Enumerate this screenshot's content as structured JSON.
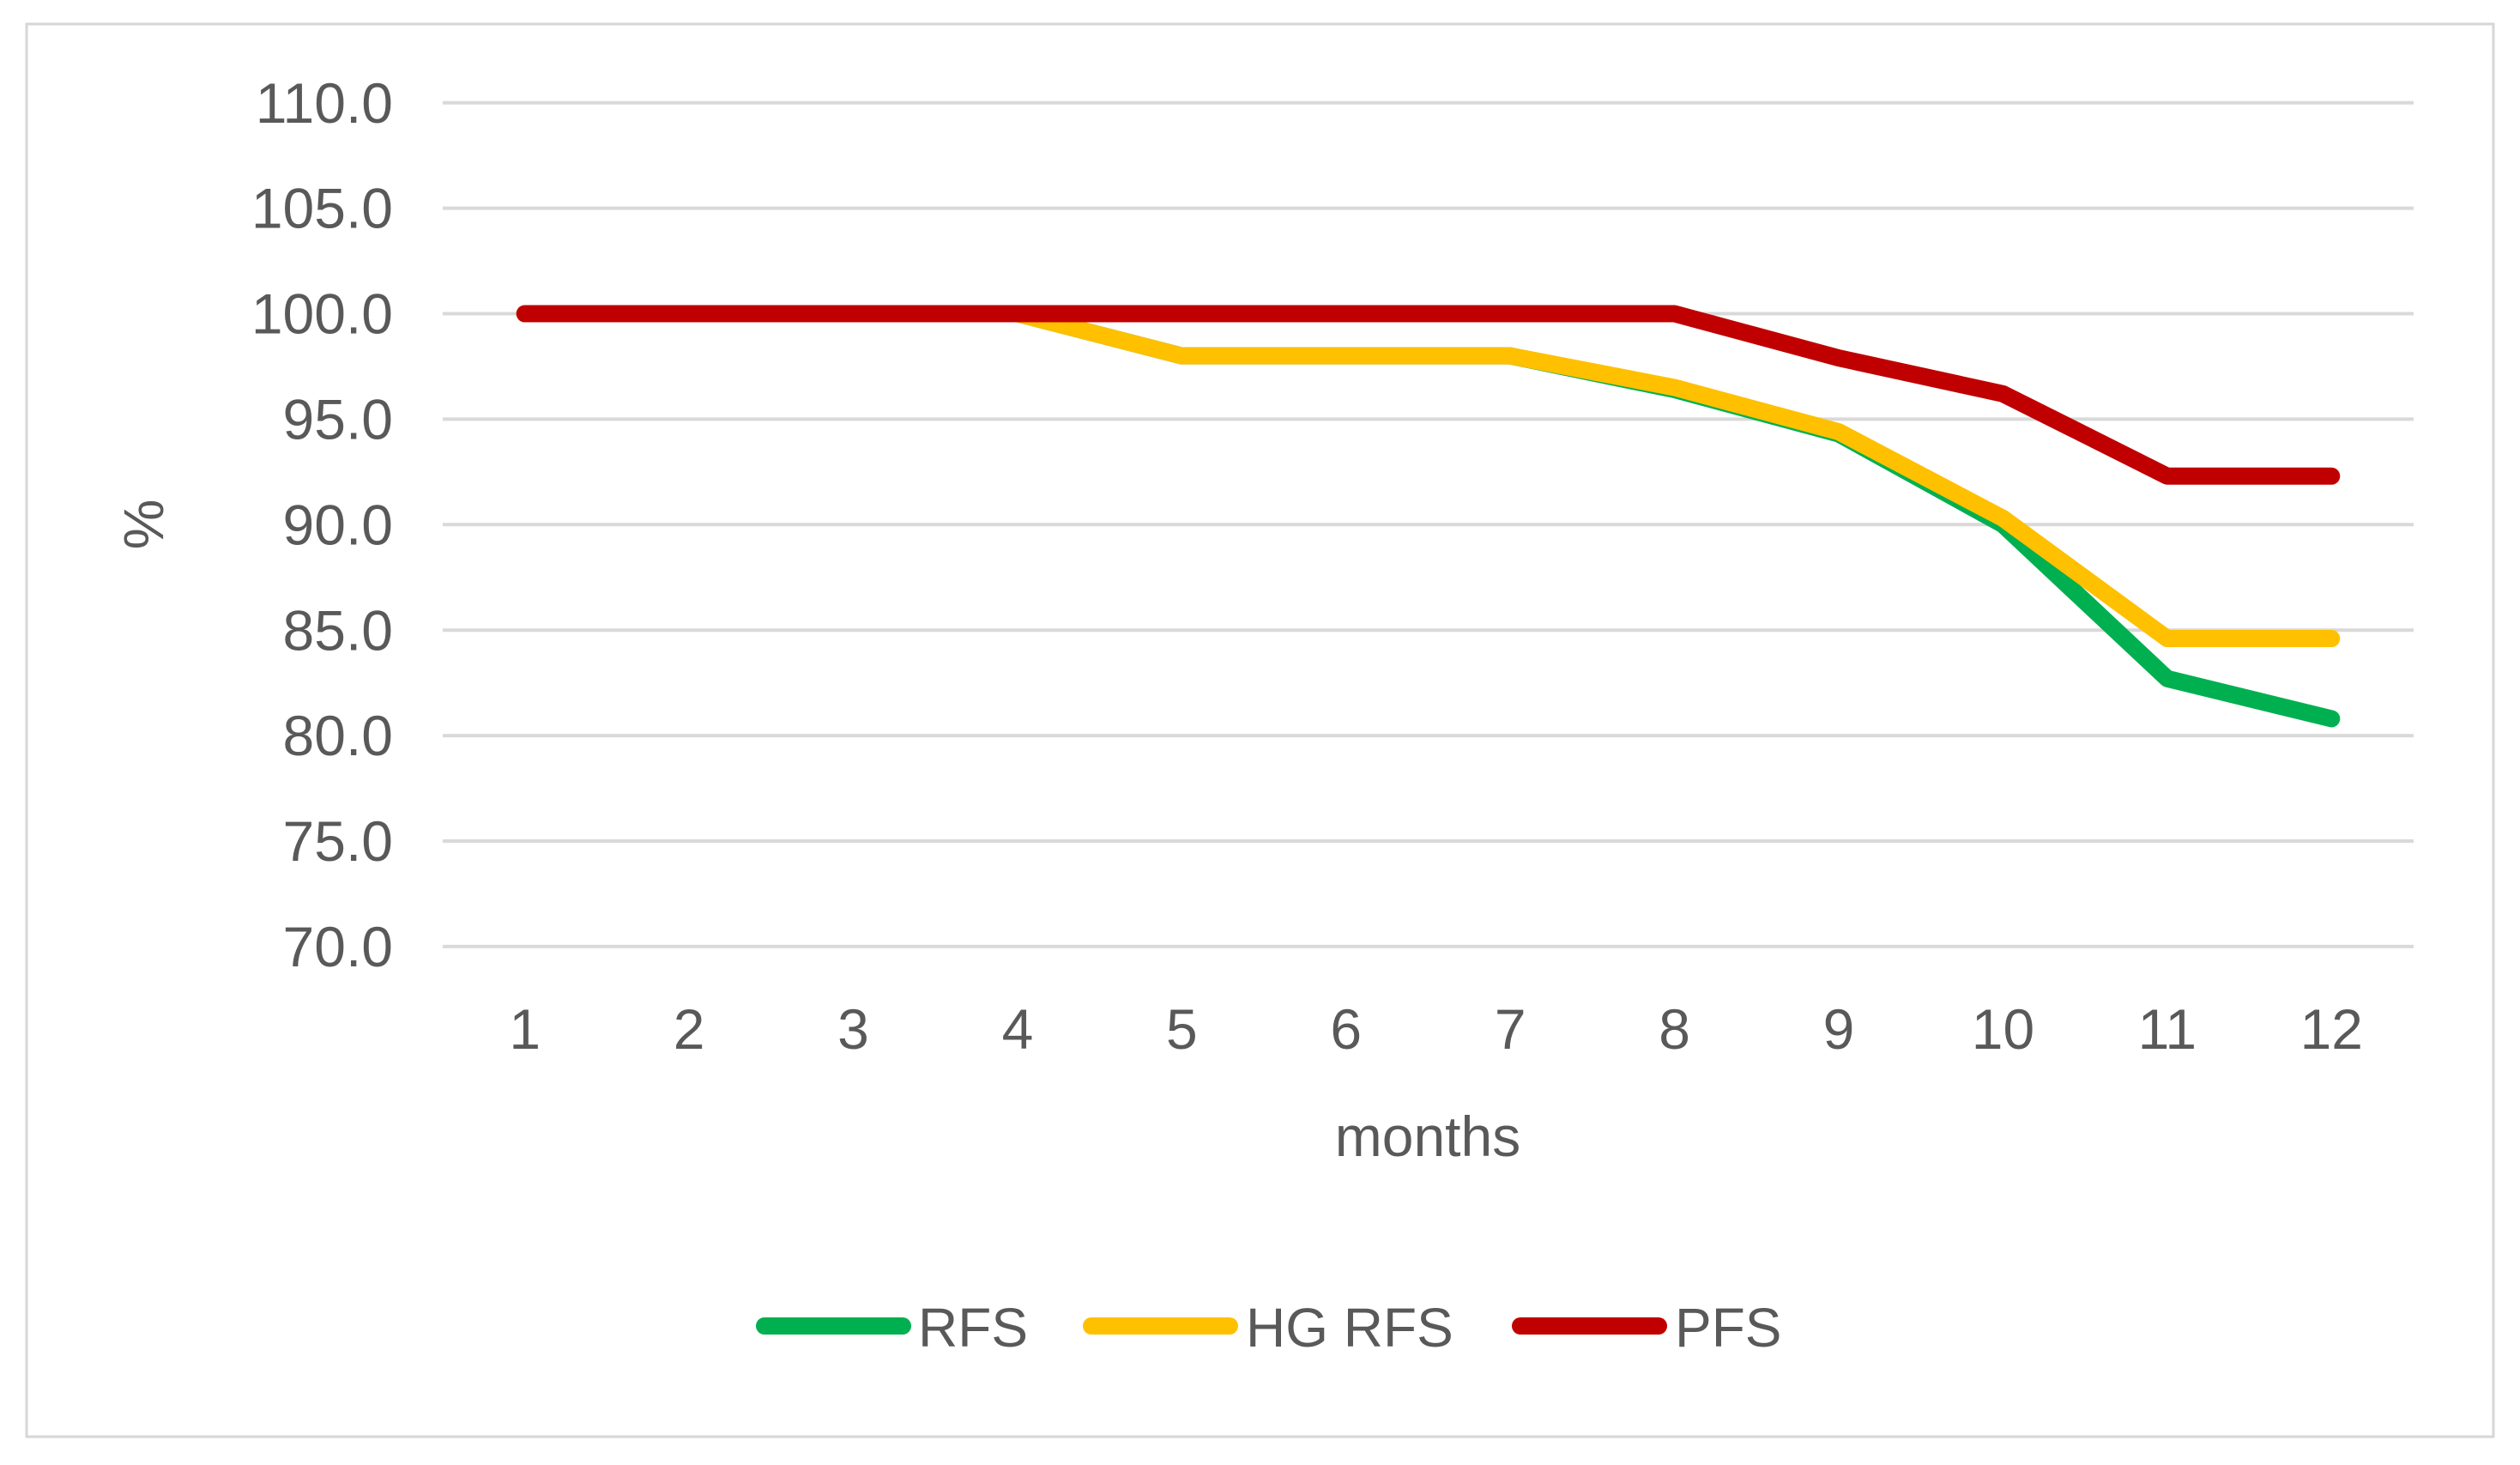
{
  "figure": {
    "background_color": "#ffffff",
    "border_color": "#d6d6d6"
  },
  "chart_data": {
    "type": "line",
    "title": "",
    "xlabel": "months",
    "ylabel": "%",
    "x": [
      1,
      2,
      3,
      4,
      5,
      6,
      7,
      8,
      9,
      10,
      11,
      12
    ],
    "series": [
      {
        "name": "RFS",
        "color": "#00b050",
        "values": [
          100,
          100,
          100,
          100,
          98,
          98,
          98,
          96.4,
          94.3,
          90.0,
          82.7,
          80.8
        ]
      },
      {
        "name": "HG RFS",
        "color": "#ffc000",
        "values": [
          100,
          100,
          100,
          100,
          98,
          98,
          98,
          96.5,
          94.4,
          90.3,
          84.6,
          84.6
        ]
      },
      {
        "name": "PFS",
        "color": "#c00000",
        "values": [
          100,
          100,
          100,
          100,
          100,
          100,
          100,
          100,
          97.9,
          96.2,
          92.3,
          92.3
        ]
      }
    ],
    "ylim": [
      70,
      110
    ],
    "ytick_step": 5,
    "ytick_decimals": 1,
    "ytick_labels": [
      "110.0",
      "105.0",
      "100.0",
      "95.0",
      "90.0",
      "85.0",
      "80.0",
      "75.0",
      "70.0"
    ],
    "xtick_labels": [
      "1",
      "2",
      "3",
      "4",
      "5",
      "6",
      "7",
      "8",
      "9",
      "10",
      "11",
      "12"
    ],
    "grid": "horizontal",
    "legend_position": "bottom",
    "gridline_color": "#d9d9d9",
    "tick_label_color": "#595959",
    "axis_title_color": "#595959"
  }
}
